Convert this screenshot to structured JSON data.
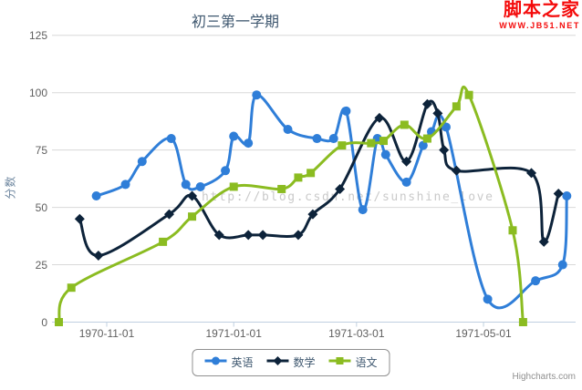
{
  "chart_data": {
    "type": "line",
    "title": "初三第一学期",
    "ylabel": "分数",
    "ylim": [
      0,
      125
    ],
    "yticks": [
      0,
      25,
      50,
      75,
      100,
      125
    ],
    "xticks": [
      {
        "date": "1970-11-01",
        "label": "1970-11-01"
      },
      {
        "date": "1971-01-01",
        "label": "1971-01-01"
      },
      {
        "date": "1971-03-01",
        "label": "1971-03-01"
      },
      {
        "date": "1971-05-01",
        "label": "1971-05-01"
      }
    ],
    "x_range": {
      "start": "1970-10-07",
      "end": "1971-06-13"
    },
    "grid": true,
    "legend_position": "bottom",
    "series": [
      {
        "name": "英语",
        "key": "english",
        "color": "#2f7ed8",
        "marker": "circle",
        "points": [
          [
            "1970-10-27",
            55
          ],
          [
            "1970-11-10",
            60
          ],
          [
            "1970-11-18",
            70
          ],
          [
            "1970-12-02",
            80
          ],
          [
            "1970-12-09",
            60
          ],
          [
            "1970-12-16",
            59
          ],
          [
            "1970-12-28",
            66
          ],
          [
            "1971-01-01",
            81
          ],
          [
            "1971-01-08",
            78
          ],
          [
            "1971-01-12",
            99
          ],
          [
            "1971-01-27",
            84
          ],
          [
            "1971-02-10",
            80
          ],
          [
            "1971-02-18",
            80
          ],
          [
            "1971-02-24",
            92
          ],
          [
            "1971-03-04",
            49
          ],
          [
            "1971-03-11",
            80
          ],
          [
            "1971-03-15",
            73
          ],
          [
            "1971-03-25",
            61
          ],
          [
            "1971-04-02",
            77
          ],
          [
            "1971-04-06",
            83
          ],
          [
            "1971-04-13",
            85
          ],
          [
            "1971-05-03",
            10
          ],
          [
            "1971-05-26",
            18
          ],
          [
            "1971-06-08",
            25
          ],
          [
            "1971-06-10",
            55
          ]
        ]
      },
      {
        "name": "数学",
        "key": "math",
        "color": "#0d233a",
        "marker": "diamond",
        "points": [
          [
            "1970-10-19",
            45
          ],
          [
            "1970-10-28",
            29
          ],
          [
            "1970-12-01",
            47
          ],
          [
            "1970-12-12",
            55
          ],
          [
            "1970-12-25",
            38
          ],
          [
            "1971-01-08",
            38
          ],
          [
            "1971-01-15",
            38
          ],
          [
            "1971-02-01",
            38
          ],
          [
            "1971-02-08",
            47
          ],
          [
            "1971-02-21",
            58
          ],
          [
            "1971-03-12",
            89
          ],
          [
            "1971-03-25",
            70
          ],
          [
            "1971-04-04",
            95
          ],
          [
            "1971-04-09",
            91
          ],
          [
            "1971-04-12",
            75
          ],
          [
            "1971-04-18",
            66
          ],
          [
            "1971-05-24",
            65
          ],
          [
            "1971-05-30",
            35
          ],
          [
            "1971-06-06",
            56
          ]
        ]
      },
      {
        "name": "语文",
        "key": "chinese",
        "color": "#8bbc21",
        "marker": "square",
        "points": [
          [
            "1970-10-09",
            0
          ],
          [
            "1970-10-15",
            15
          ],
          [
            "1970-11-28",
            35
          ],
          [
            "1970-12-12",
            46
          ],
          [
            "1971-01-01",
            59
          ],
          [
            "1971-01-24",
            58
          ],
          [
            "1971-02-01",
            63
          ],
          [
            "1971-02-07",
            65
          ],
          [
            "1971-02-22",
            77
          ],
          [
            "1971-03-08",
            78
          ],
          [
            "1971-03-14",
            79
          ],
          [
            "1971-03-24",
            86
          ],
          [
            "1971-04-04",
            80
          ],
          [
            "1971-04-18",
            94
          ],
          [
            "1971-04-24",
            99
          ],
          [
            "1971-05-15",
            40
          ],
          [
            "1971-05-20",
            0
          ]
        ]
      }
    ]
  },
  "watermark": "http://blog.csdn.net/sunshine_love",
  "credits": "Highcharts.com",
  "site_logo": {
    "name": "脚本之家",
    "url": "WWW.JB51.NET"
  },
  "colors": {
    "title": "#3E576F",
    "axis_label": "#606060",
    "y_axis_title": "#6D869F",
    "grid": "#D8D8D8",
    "axis_line": "#C0D0E0",
    "legend_border": "#909090",
    "legend_text": "#3E576F",
    "credits": "#909090",
    "watermark": "#CACACA",
    "logo_red": "#F40B0B"
  }
}
